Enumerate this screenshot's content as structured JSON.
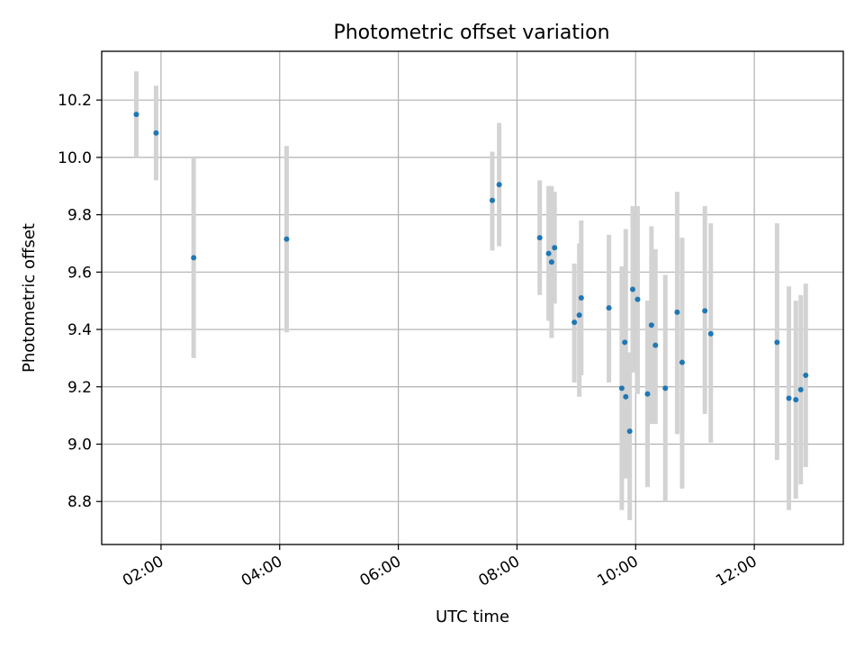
{
  "chart_data": {
    "type": "scatter",
    "title": "Photometric offset variation",
    "xlabel": "UTC time",
    "ylabel": "Photometric offset",
    "x_unit": "hours UTC",
    "xlim": [
      "01:00",
      "13:30"
    ],
    "ylim": [
      8.65,
      10.37
    ],
    "x_ticks": [
      "02:00",
      "04:00",
      "06:00",
      "08:00",
      "10:00",
      "12:00"
    ],
    "y_ticks": [
      "8.8",
      "9.0",
      "9.2",
      "9.4",
      "9.6",
      "9.8",
      "10.0",
      "10.2"
    ],
    "grid": true,
    "colors": {
      "point": "#1f77b4",
      "errorbar": "#d3d3d3",
      "grid": "#b0b0b0"
    },
    "points": [
      {
        "t": "01:35",
        "y": 10.15,
        "err_low": 10.0,
        "err_high": 10.3
      },
      {
        "t": "01:55",
        "y": 10.085,
        "err_low": 9.92,
        "err_high": 10.25
      },
      {
        "t": "02:33",
        "y": 9.65,
        "err_low": 9.3,
        "err_high": 10.0
      },
      {
        "t": "04:07",
        "y": 9.715,
        "err_low": 9.39,
        "err_high": 10.04
      },
      {
        "t": "07:35",
        "y": 9.85,
        "err_low": 9.675,
        "err_high": 10.02
      },
      {
        "t": "07:42",
        "y": 9.905,
        "err_low": 9.69,
        "err_high": 10.12
      },
      {
        "t": "08:23",
        "y": 9.72,
        "err_low": 9.52,
        "err_high": 9.92
      },
      {
        "t": "08:32",
        "y": 9.665,
        "err_low": 9.43,
        "err_high": 9.9
      },
      {
        "t": "08:35",
        "y": 9.635,
        "err_low": 9.37,
        "err_high": 9.9
      },
      {
        "t": "08:38",
        "y": 9.685,
        "err_low": 9.49,
        "err_high": 9.88
      },
      {
        "t": "08:58",
        "y": 9.425,
        "err_low": 9.215,
        "err_high": 9.63
      },
      {
        "t": "09:03",
        "y": 9.45,
        "err_low": 9.165,
        "err_high": 9.7
      },
      {
        "t": "09:05",
        "y": 9.51,
        "err_low": 9.24,
        "err_high": 9.78
      },
      {
        "t": "09:33",
        "y": 9.475,
        "err_low": 9.215,
        "err_high": 9.73
      },
      {
        "t": "09:46",
        "y": 9.195,
        "err_low": 8.77,
        "err_high": 9.62
      },
      {
        "t": "09:49",
        "y": 9.355,
        "err_low": 8.96,
        "err_high": 9.62
      },
      {
        "t": "09:50",
        "y": 9.165,
        "err_low": 8.88,
        "err_high": 9.75
      },
      {
        "t": "09:54",
        "y": 9.045,
        "err_low": 8.735,
        "err_high": 9.32
      },
      {
        "t": "09:57",
        "y": 9.54,
        "err_low": 9.25,
        "err_high": 9.83
      },
      {
        "t": "10:02",
        "y": 9.505,
        "err_low": 9.175,
        "err_high": 9.83
      },
      {
        "t": "10:12",
        "y": 9.175,
        "err_low": 8.85,
        "err_high": 9.5
      },
      {
        "t": "10:16",
        "y": 9.415,
        "err_low": 9.07,
        "err_high": 9.76
      },
      {
        "t": "10:20",
        "y": 9.345,
        "err_low": 9.07,
        "err_high": 9.68
      },
      {
        "t": "10:30",
        "y": 9.195,
        "err_low": 8.8,
        "err_high": 9.59
      },
      {
        "t": "10:42",
        "y": 9.46,
        "err_low": 9.035,
        "err_high": 9.88
      },
      {
        "t": "10:47",
        "y": 9.285,
        "err_low": 8.845,
        "err_high": 9.72
      },
      {
        "t": "11:10",
        "y": 9.465,
        "err_low": 9.105,
        "err_high": 9.83
      },
      {
        "t": "11:16",
        "y": 9.385,
        "err_low": 9.005,
        "err_high": 9.77
      },
      {
        "t": "12:23",
        "y": 9.355,
        "err_low": 8.945,
        "err_high": 9.77
      },
      {
        "t": "12:35",
        "y": 9.16,
        "err_low": 8.77,
        "err_high": 9.55
      },
      {
        "t": "12:42",
        "y": 9.155,
        "err_low": 8.81,
        "err_high": 9.5
      },
      {
        "t": "12:47",
        "y": 9.19,
        "err_low": 8.86,
        "err_high": 9.52
      },
      {
        "t": "12:52",
        "y": 9.24,
        "err_low": 8.92,
        "err_high": 9.56
      }
    ]
  }
}
